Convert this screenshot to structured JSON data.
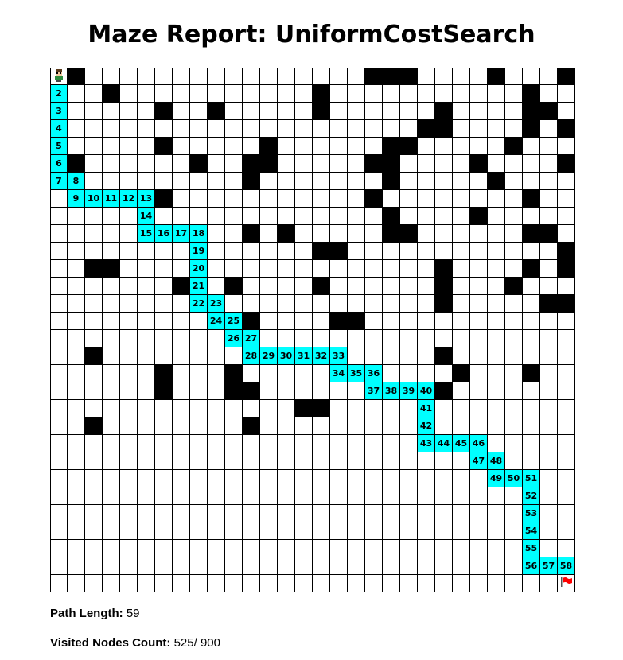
{
  "title": "Maze Report: UniformCostSearch",
  "grid": {
    "rows": 30,
    "cols": 30,
    "walls": [
      "010000000000000000111000010001",
      "000100000000000100000000000100",
      "000000100100000100000010000110",
      "000000000000000000000110000101",
      "000000100000100000011000001000",
      "010000001001100000110000100001",
      "000000000001000000010000010000",
      "000000100000000000100000000100",
      "000000000000000000010000100000",
      "000000000001010000011000000110",
      "000000000000000110000000000001",
      "001100000000000000000010000101",
      "000000010010000100000010001000",
      "000000000000000000000010000011",
      "000000000001000011000000000000",
      "000000000000000000000000000000",
      "001000000000000000000010000000",
      "000000100010000000000001000100",
      "000000100011000000000010000000",
      "000000000000001100000000000000",
      "001000000001000000000000000000",
      "000000000000000000000000000000",
      "000000000000000000000000000000",
      "000000000000000000000000000000",
      "000000000000000000000000000000",
      "000000000000000000000000000000",
      "000000000000000000000000000000",
      "000000000000000000000000000000",
      "000000000000000000000000000000",
      "000000000000000000000000000000"
    ],
    "path": [
      [
        0,
        0
      ],
      [
        1,
        0
      ],
      [
        2,
        0
      ],
      [
        3,
        0
      ],
      [
        4,
        0
      ],
      [
        5,
        0
      ],
      [
        6,
        0
      ],
      [
        6,
        1
      ],
      [
        7,
        1
      ],
      [
        7,
        2
      ],
      [
        7,
        3
      ],
      [
        7,
        4
      ],
      [
        7,
        5
      ],
      [
        8,
        5
      ],
      [
        9,
        5
      ],
      [
        9,
        6
      ],
      [
        9,
        7
      ],
      [
        9,
        8
      ],
      [
        10,
        8
      ],
      [
        11,
        8
      ],
      [
        12,
        8
      ],
      [
        13,
        8
      ],
      [
        13,
        9
      ],
      [
        14,
        9
      ],
      [
        14,
        10
      ],
      [
        15,
        10
      ],
      [
        15,
        11
      ],
      [
        16,
        11
      ],
      [
        16,
        12
      ],
      [
        16,
        13
      ],
      [
        16,
        14
      ],
      [
        16,
        15
      ],
      [
        16,
        16
      ],
      [
        17,
        16
      ],
      [
        17,
        17
      ],
      [
        17,
        18
      ],
      [
        18,
        18
      ],
      [
        18,
        19
      ],
      [
        18,
        20
      ],
      [
        18,
        21
      ],
      [
        19,
        21
      ],
      [
        20,
        21
      ],
      [
        21,
        21
      ],
      [
        21,
        22
      ],
      [
        21,
        23
      ],
      [
        21,
        24
      ],
      [
        22,
        24
      ],
      [
        22,
        25
      ],
      [
        23,
        25
      ],
      [
        23,
        26
      ],
      [
        23,
        27
      ],
      [
        24,
        27
      ],
      [
        25,
        27
      ],
      [
        26,
        27
      ],
      [
        27,
        27
      ],
      [
        28,
        27
      ],
      [
        28,
        28
      ],
      [
        28,
        29
      ],
      [
        29,
        29
      ]
    ],
    "start_icon": "person-icon",
    "goal_icon": "red-flag-icon"
  },
  "stats": {
    "path_length_label": "Path Length:",
    "path_length_value": "59",
    "visited_label": "Visited Nodes Count:",
    "visited_value": "525/ 900"
  },
  "colors": {
    "wall": "#000000",
    "path": "#00ffff",
    "open": "#ffffff",
    "flag": "#ff0000"
  }
}
